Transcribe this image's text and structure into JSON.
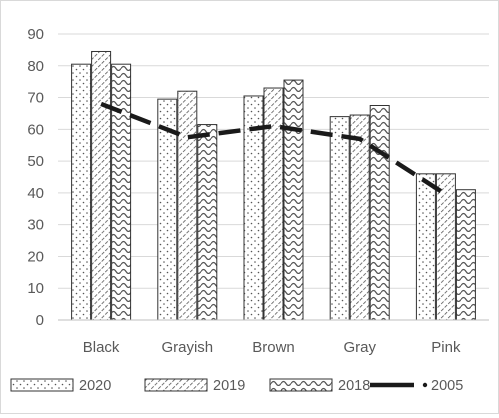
{
  "chart_data": {
    "type": "bar",
    "categories": [
      "Black",
      "Grayish",
      "Brown",
      "Gray",
      "Pink"
    ],
    "series": [
      {
        "name": "2020",
        "kind": "bar",
        "pattern": "dots",
        "values": [
          80.5,
          69.5,
          70.5,
          64,
          46
        ]
      },
      {
        "name": "2019",
        "kind": "bar",
        "pattern": "diagonal-hatch",
        "values": [
          84.5,
          72,
          73,
          64.5,
          46
        ]
      },
      {
        "name": "2018",
        "kind": "bar",
        "pattern": "waves",
        "values": [
          80.5,
          61.5,
          75.5,
          67.5,
          41
        ]
      },
      {
        "name": "2005",
        "kind": "line",
        "style": "long-dash",
        "values": [
          68,
          57.5,
          61,
          57,
          39.5
        ]
      }
    ],
    "ylim": [
      0,
      90
    ],
    "yticks": [
      0,
      10,
      20,
      30,
      40,
      50,
      60,
      70,
      80,
      90
    ],
    "grid": true,
    "legend_position": "bottom",
    "colors": {
      "bar_stroke": "#333333",
      "pattern": "#555555",
      "line": "#1a1a1a",
      "grid": "#d9d9d9",
      "text": "#595959"
    }
  }
}
